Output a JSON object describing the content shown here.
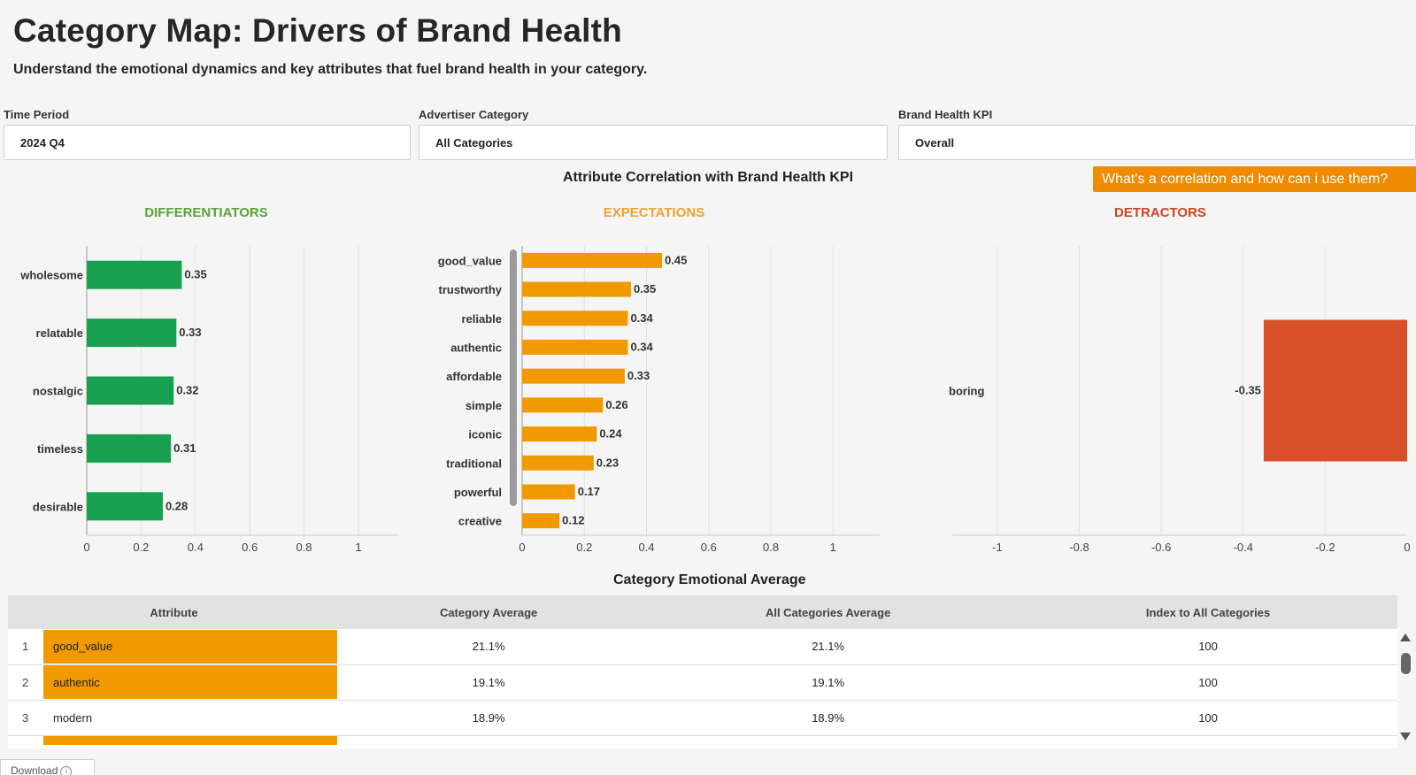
{
  "header": {
    "title": "Category Map: Drivers of Brand Health",
    "subtitle": "Understand the emotional dynamics and key attributes that fuel brand health in your category."
  },
  "filters": {
    "time_period": {
      "label": "Time Period",
      "value": "2024 Q4"
    },
    "advertiser_category": {
      "label": "Advertiser Category",
      "value": "All Categories"
    },
    "kpi": {
      "label": "Brand Health KPI",
      "value": "Overall"
    }
  },
  "correlation": {
    "title": "Attribute Correlation with Brand Health KPI",
    "help_button": "What's a correlation and how can i use them?"
  },
  "colors": {
    "differentiators": "#17a04f",
    "expectations": "#f09a00",
    "detractors": "#d8502a",
    "differentiators_title": "#5aa33a",
    "expectations_title": "#f0a030",
    "detractors_title": "#cc4422"
  },
  "chart_data": [
    {
      "type": "bar",
      "orientation": "horizontal",
      "title": "DIFFERENTIATORS",
      "categories": [
        "wholesome",
        "relatable",
        "nostalgic",
        "timeless",
        "desirable"
      ],
      "values": [
        0.35,
        0.33,
        0.32,
        0.31,
        0.28
      ],
      "labels": [
        "0.35",
        "0.33",
        "0.32",
        "0.31",
        "0.28"
      ],
      "xlim": [
        0,
        1.15
      ],
      "ticks": [
        0,
        0.2,
        0.4,
        0.6,
        0.8,
        1
      ],
      "tick_labels": [
        "0",
        "0.2",
        "0.4",
        "0.6",
        "0.8",
        "1"
      ],
      "grid": true
    },
    {
      "type": "bar",
      "orientation": "horizontal",
      "title": "EXPECTATIONS",
      "categories": [
        "good_value",
        "trustworthy",
        "reliable",
        "authentic",
        "affordable",
        "simple",
        "iconic",
        "traditional",
        "powerful",
        "creative"
      ],
      "values": [
        0.45,
        0.35,
        0.34,
        0.34,
        0.33,
        0.26,
        0.24,
        0.23,
        0.17,
        0.12
      ],
      "labels": [
        "0.45",
        "0.35",
        "0.34",
        "0.34",
        "0.33",
        "0.26",
        "0.24",
        "0.23",
        "0.17",
        "0.12"
      ],
      "xlim": [
        0,
        1.15
      ],
      "ticks": [
        0,
        0.2,
        0.4,
        0.6,
        0.8,
        1
      ],
      "tick_labels": [
        "0",
        "0.2",
        "0.4",
        "0.6",
        "0.8",
        "1"
      ],
      "grid": true
    },
    {
      "type": "bar",
      "orientation": "horizontal",
      "title": "DETRACTORS",
      "categories": [
        "boring"
      ],
      "values": [
        -0.35
      ],
      "labels": [
        "-0.35"
      ],
      "xlim": [
        -1.11,
        0
      ],
      "ticks": [
        -1,
        -0.8,
        -0.6,
        -0.4,
        -0.2,
        0
      ],
      "tick_labels": [
        "-1",
        "-0.8",
        "-0.6",
        "-0.4",
        "-0.2",
        "0"
      ],
      "grid": true
    }
  ],
  "emotional_table": {
    "title": "Category Emotional Average",
    "columns": [
      "Attribute",
      "Category Average",
      "All Categories Average",
      "Index to All Categories"
    ],
    "rows": [
      {
        "rank": "1",
        "attribute": "good_value",
        "category_average": "21.1%",
        "all_average": "21.1%",
        "index": "100"
      },
      {
        "rank": "2",
        "attribute": "authentic",
        "category_average": "19.1%",
        "all_average": "19.1%",
        "index": "100"
      },
      {
        "rank": "3",
        "attribute": "modern",
        "category_average": "18.9%",
        "all_average": "18.9%",
        "index": "100"
      }
    ]
  },
  "download": {
    "label": "Download"
  }
}
